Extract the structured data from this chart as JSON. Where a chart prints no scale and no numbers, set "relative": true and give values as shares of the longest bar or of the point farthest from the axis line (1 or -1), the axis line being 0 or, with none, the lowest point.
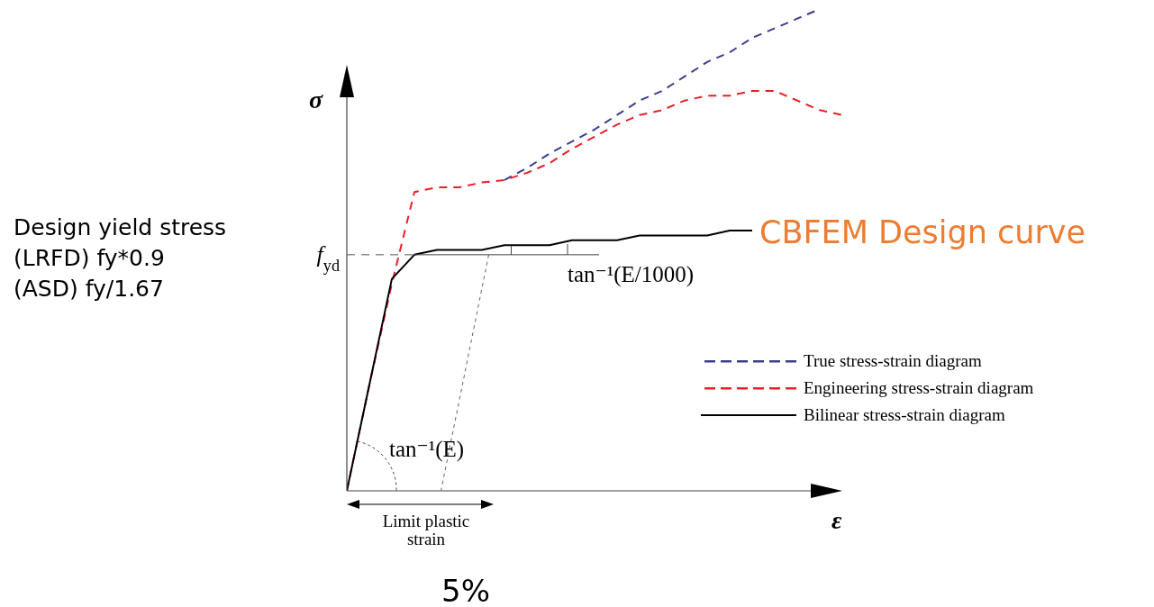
{
  "chart_data": {
    "type": "line",
    "relative": true,
    "xlabel": "ε",
    "ylabel": "σ",
    "categories": [
      null,
      null,
      null,
      null,
      null,
      null,
      null,
      null,
      null,
      null,
      null,
      null,
      null,
      null,
      null,
      null,
      null,
      null,
      null,
      null,
      null,
      null,
      null
    ],
    "series": [
      {
        "name": "True stress-strain diagram",
        "color": "#3c3c8c",
        "line_style": "dashed",
        "values": [
          null,
          null,
          null,
          null,
          null,
          null,
          null,
          0.645,
          0.67,
          0.7,
          0.725,
          0.75,
          0.78,
          0.81,
          0.83,
          0.86,
          0.89,
          0.91,
          0.94,
          0.96,
          0.98,
          1.0,
          null
        ]
      },
      {
        "name": "Engineering stress-strain diagram",
        "color": "#e8202a",
        "line_style": "dashed",
        "values": [
          0,
          0.22,
          0.43,
          0.62,
          0.63,
          0.63,
          0.64,
          0.645,
          0.66,
          0.68,
          0.71,
          0.735,
          0.76,
          0.78,
          0.79,
          0.81,
          0.82,
          0.82,
          0.83,
          0.83,
          0.81,
          0.79,
          0.78
        ]
      },
      {
        "name": "Bilinear stress-strain diagram",
        "color": "#000000",
        "line_style": "solid",
        "values": [
          0,
          0.22,
          0.44,
          0.49,
          0.5,
          0.5,
          0.5,
          0.51,
          0.51,
          0.51,
          0.52,
          0.52,
          0.52,
          0.53,
          0.53,
          0.53,
          0.53,
          0.54,
          0.54,
          null,
          null,
          null,
          null
        ]
      }
    ],
    "ref_lines": [
      {
        "axis": "y",
        "value": 0.49,
        "label": "f$_{yd}$",
        "line_style": "dashed",
        "color": "#555555"
      }
    ],
    "annotations": [
      "Design yield stress\n(LRFD) fy*0.9\n(ASD) fy/1.67",
      "CBFEM Design curve",
      "tan⁻¹(E/1000)",
      "tan⁻¹(E)",
      "Limit plastic strain",
      "5%"
    ],
    "legend": "right"
  }
}
